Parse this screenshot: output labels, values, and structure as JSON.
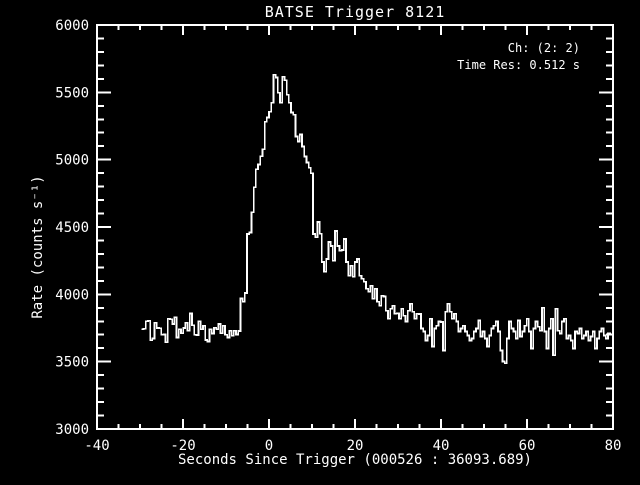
{
  "window": {
    "background_color": "#000000",
    "foreground_color": "#ffffff"
  },
  "chart_data": {
    "type": "line",
    "style": "step-histogram",
    "title": "BATSE Trigger 8121",
    "xlabel": "Seconds Since Trigger (000526 : 36093.689)",
    "ylabel": "Rate (counts s⁻¹)",
    "annotations": {
      "channel": "Ch: (2: 2)",
      "time_res": "Time Res: 0.512 s"
    },
    "legend": "none",
    "grid": "off",
    "xlim": [
      -40,
      80
    ],
    "ylim": [
      3000,
      6000
    ],
    "x_ticks": [
      -40,
      -20,
      0,
      20,
      40,
      60,
      80
    ],
    "x_tick_labels": [
      "-40",
      "-20",
      "0",
      "20",
      "40",
      "60",
      "80"
    ],
    "x_minor_step": 5,
    "y_ticks": [
      3000,
      3500,
      4000,
      4500,
      5000,
      5500,
      6000
    ],
    "y_tick_labels": [
      "3000",
      "3500",
      "4000",
      "4500",
      "5000",
      "5500",
      "6000"
    ],
    "y_minor_step": 100,
    "bin_seconds": 0.512,
    "t_start": -29.7,
    "peak_rate": 5630,
    "peak_time": 2,
    "background_rate": 3730,
    "rates": [
      3740,
      3745,
      3800,
      3805,
      3660,
      3672,
      3790,
      3750,
      3748,
      3700,
      3702,
      3645,
      3820,
      3815,
      3780,
      3830,
      3680,
      3740,
      3712,
      3750,
      3790,
      3730,
      3858,
      3770,
      3700,
      3698,
      3800,
      3740,
      3768,
      3662,
      3650,
      3740,
      3710,
      3752,
      3740,
      3780,
      3712,
      3768,
      3700,
      3680,
      3730,
      3692,
      3730,
      3702,
      3728,
      3970,
      3945,
      4010,
      4448,
      4460,
      4611,
      4795,
      4930,
      4965,
      5025,
      5077,
      5283,
      5313,
      5357,
      5424,
      5630,
      5610,
      5497,
      5424,
      5615,
      5590,
      5483,
      5424,
      5350,
      5335,
      5172,
      5135,
      5187,
      5098,
      5024,
      4980,
      4940,
      4900,
      4448,
      4424,
      4537,
      4450,
      4241,
      4167,
      4263,
      4389,
      4360,
      4249,
      4470,
      4360,
      4323,
      4330,
      4411,
      4241,
      4138,
      4212,
      4130,
      4241,
      4263,
      4138,
      4116,
      4093,
      4042,
      4019,
      4064,
      3968,
      4042,
      3946,
      3916,
      3990,
      3985,
      3879,
      3820,
      3894,
      3916,
      3857,
      3860,
      3820,
      3894,
      3842,
      3798,
      3879,
      3931,
      3872,
      3820,
      3857,
      3855,
      3746,
      3724,
      3658,
      3694,
      3820,
      3613,
      3746,
      3768,
      3798,
      3795,
      3584,
      3872,
      3931,
      3872,
      3820,
      3857,
      3798,
      3724,
      3746,
      3768,
      3724,
      3694,
      3658,
      3672,
      3724,
      3746,
      3806,
      3687,
      3724,
      3672,
      3613,
      3694,
      3746,
      3768,
      3798,
      3724,
      3584,
      3502,
      3488,
      3672,
      3798,
      3746,
      3724,
      3672,
      3806,
      3687,
      3724,
      3768,
      3820,
      3724,
      3598,
      3746,
      3798,
      3760,
      3731,
      3901,
      3724,
      3598,
      3746,
      3820,
      3547,
      3894,
      3731,
      3709,
      3798,
      3820,
      3672,
      3694,
      3658,
      3598,
      3724,
      3709,
      3746,
      3672,
      3694,
      3724,
      3658,
      3687,
      3724,
      3598,
      3672,
      3724,
      3746,
      3694,
      3672,
      3709,
      3700
    ]
  }
}
